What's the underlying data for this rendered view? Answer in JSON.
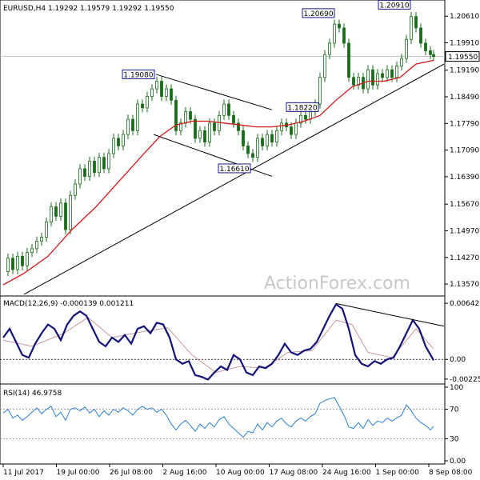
{
  "chart_data": [
    {
      "type": "line",
      "panel": "price",
      "title": "EURUSD,H4  1.19292 1.19579 1.19292 1.19550",
      "watermark": "ActionForex.com",
      "yticks": [
        "1.20610",
        "1.19910",
        "1.19190",
        "1.18490",
        "1.17790",
        "1.17090",
        "1.16390",
        "1.15670",
        "1.14970",
        "1.14270",
        "1.13570"
      ],
      "ylim": [
        1.1334,
        1.2095
      ],
      "current_price": "1.19550",
      "xticks": [
        "11 Jul 2017",
        "19 Jul 00:00",
        "26 Jul 08:00",
        "2 Aug 16:00",
        "10 Aug 00:00",
        "17 Aug 08:00",
        "24 Aug 16:00",
        "1 Sep 00:00",
        "8 Sep 08:00"
      ],
      "annotations": [
        {
          "text": "1.19080",
          "x": 195,
          "y": 1.1908
        },
        {
          "text": "1.16610",
          "x": 315,
          "y": 1.1661
        },
        {
          "text": "1.20690",
          "x": 420,
          "y": 1.2069
        },
        {
          "text": "1.18220",
          "x": 400,
          "y": 1.1822
        },
        {
          "text": "1.20910",
          "x": 515,
          "y": 1.2091
        }
      ],
      "close_series": [
        [
          4,
          1.139
        ],
        [
          10,
          1.1425
        ],
        [
          16,
          1.1395
        ],
        [
          22,
          1.143
        ],
        [
          28,
          1.1405
        ],
        [
          34,
          1.144
        ],
        [
          40,
          1.145
        ],
        [
          46,
          1.147
        ],
        [
          52,
          1.148
        ],
        [
          58,
          1.152
        ],
        [
          64,
          1.156
        ],
        [
          70,
          1.1535
        ],
        [
          76,
          1.157
        ],
        [
          82,
          1.15
        ],
        [
          88,
          1.159
        ],
        [
          94,
          1.162
        ],
        [
          100,
          1.166
        ],
        [
          106,
          1.164
        ],
        [
          112,
          1.168
        ],
        [
          118,
          1.165
        ],
        [
          124,
          1.169
        ],
        [
          130,
          1.166
        ],
        [
          136,
          1.17
        ],
        [
          142,
          1.174
        ],
        [
          148,
          1.172
        ],
        [
          154,
          1.175
        ],
        [
          160,
          1.179
        ],
        [
          166,
          1.176
        ],
        [
          172,
          1.183
        ],
        [
          178,
          1.182
        ],
        [
          184,
          1.185
        ],
        [
          190,
          1.187
        ],
        [
          196,
          1.189
        ],
        [
          202,
          1.185
        ],
        [
          208,
          1.187
        ],
        [
          214,
          1.184
        ],
        [
          220,
          1.176
        ],
        [
          226,
          1.178
        ],
        [
          232,
          1.181
        ],
        [
          238,
          1.179
        ],
        [
          244,
          1.174
        ],
        [
          250,
          1.176
        ],
        [
          256,
          1.173
        ],
        [
          262,
          1.178
        ],
        [
          268,
          1.176
        ],
        [
          274,
          1.18
        ],
        [
          280,
          1.183
        ],
        [
          286,
          1.18
        ],
        [
          292,
          1.178
        ],
        [
          298,
          1.176
        ],
        [
          304,
          1.172
        ],
        [
          310,
          1.17
        ],
        [
          316,
          1.169
        ],
        [
          322,
          1.174
        ],
        [
          328,
          1.172
        ],
        [
          334,
          1.175
        ],
        [
          340,
          1.173
        ],
        [
          346,
          1.176
        ],
        [
          352,
          1.178
        ],
        [
          358,
          1.177
        ],
        [
          364,
          1.175
        ],
        [
          370,
          1.178
        ],
        [
          376,
          1.18
        ],
        [
          382,
          1.179
        ],
        [
          388,
          1.181
        ],
        [
          394,
          1.183
        ],
        [
          400,
          1.19
        ],
        [
          406,
          1.196
        ],
        [
          412,
          1.199
        ],
        [
          418,
          1.204
        ],
        [
          424,
          1.203
        ],
        [
          430,
          1.199
        ],
        [
          436,
          1.19
        ],
        [
          442,
          1.188
        ],
        [
          448,
          1.19
        ],
        [
          454,
          1.187
        ],
        [
          460,
          1.192
        ],
        [
          466,
          1.188
        ],
        [
          472,
          1.191
        ],
        [
          478,
          1.19
        ],
        [
          484,
          1.192
        ],
        [
          490,
          1.19
        ],
        [
          496,
          1.193
        ],
        [
          502,
          1.195
        ],
        [
          508,
          1.2
        ],
        [
          514,
          1.206
        ],
        [
          520,
          1.203
        ],
        [
          526,
          1.199
        ],
        [
          532,
          1.197
        ],
        [
          538,
          1.196
        ],
        [
          542,
          1.1955
        ]
      ],
      "ma_series": [
        [
          4,
          1.1355
        ],
        [
          30,
          1.1385
        ],
        [
          60,
          1.143
        ],
        [
          90,
          1.15
        ],
        [
          120,
          1.156
        ],
        [
          150,
          1.163
        ],
        [
          180,
          1.17
        ],
        [
          200,
          1.1745
        ],
        [
          220,
          1.1775
        ],
        [
          240,
          1.1785
        ],
        [
          260,
          1.1785
        ],
        [
          280,
          1.178
        ],
        [
          300,
          1.1775
        ],
        [
          320,
          1.177
        ],
        [
          340,
          1.177
        ],
        [
          360,
          1.1775
        ],
        [
          380,
          1.1785
        ],
        [
          400,
          1.18
        ],
        [
          420,
          1.184
        ],
        [
          440,
          1.1875
        ],
        [
          460,
          1.189
        ],
        [
          480,
          1.189
        ],
        [
          500,
          1.19
        ],
        [
          520,
          1.1935
        ],
        [
          542,
          1.1945
        ]
      ],
      "trendlines": [
        {
          "from": [
            30,
            1.133
          ],
          "to": [
            555,
            1.1935
          ]
        },
        {
          "from": [
            195,
            1.1908
          ],
          "to": [
            340,
            1.1815
          ]
        },
        {
          "from": [
            192,
            1.175
          ],
          "to": [
            340,
            1.164
          ]
        }
      ]
    },
    {
      "type": "line",
      "panel": "macd",
      "title": "MACD(12,26,9) -0.000139 0.001211",
      "yticks": [
        "0.006425",
        "0.00",
        "-0.002251"
      ],
      "ylim": [
        -0.00245,
        0.0068
      ],
      "zero_line": 0,
      "macd_series": [
        [
          4,
          0.0025
        ],
        [
          12,
          0.0035
        ],
        [
          20,
          0.002
        ],
        [
          28,
          0.0005
        ],
        [
          36,
          0.0002
        ],
        [
          44,
          0.0018
        ],
        [
          52,
          0.003
        ],
        [
          60,
          0.004
        ],
        [
          68,
          0.0035
        ],
        [
          76,
          0.0022
        ],
        [
          84,
          0.004
        ],
        [
          92,
          0.005
        ],
        [
          100,
          0.0055
        ],
        [
          108,
          0.005
        ],
        [
          116,
          0.0035
        ],
        [
          124,
          0.002
        ],
        [
          132,
          0.0015
        ],
        [
          140,
          0.0025
        ],
        [
          148,
          0.002
        ],
        [
          156,
          0.0028
        ],
        [
          164,
          0.0018
        ],
        [
          172,
          0.0035
        ],
        [
          180,
          0.0038
        ],
        [
          188,
          0.003
        ],
        [
          196,
          0.0042
        ],
        [
          204,
          0.004
        ],
        [
          212,
          0.0025
        ],
        [
          220,
          0.0
        ],
        [
          228,
          -0.0005
        ],
        [
          236,
          -0.0002
        ],
        [
          244,
          -0.0018
        ],
        [
          252,
          -0.002
        ],
        [
          260,
          -0.0023
        ],
        [
          268,
          -0.0015
        ],
        [
          276,
          -0.0008
        ],
        [
          284,
          -0.0012
        ],
        [
          292,
          0.0005
        ],
        [
          300,
          0.0
        ],
        [
          308,
          -0.0015
        ],
        [
          316,
          -0.0018
        ],
        [
          324,
          -0.0008
        ],
        [
          332,
          -0.001
        ],
        [
          340,
          -0.0005
        ],
        [
          348,
          0.0005
        ],
        [
          356,
          0.0018
        ],
        [
          364,
          0.0008
        ],
        [
          372,
          0.0005
        ],
        [
          380,
          0.001
        ],
        [
          388,
          0.0012
        ],
        [
          396,
          0.002
        ],
        [
          404,
          0.0035
        ],
        [
          412,
          0.005
        ],
        [
          420,
          0.0063
        ],
        [
          428,
          0.0058
        ],
        [
          436,
          0.0035
        ],
        [
          444,
          0.0005
        ],
        [
          452,
          -0.0005
        ],
        [
          460,
          -0.0008
        ],
        [
          468,
          -0.0002
        ],
        [
          476,
          -0.0005
        ],
        [
          484,
          0.0
        ],
        [
          492,
          0.0002
        ],
        [
          500,
          0.0015
        ],
        [
          508,
          0.003
        ],
        [
          516,
          0.0045
        ],
        [
          524,
          0.0035
        ],
        [
          532,
          0.0015
        ],
        [
          542,
          -0.0001
        ]
      ],
      "signal_series": [
        [
          4,
          0.0022
        ],
        [
          40,
          0.0015
        ],
        [
          80,
          0.003
        ],
        [
          110,
          0.0048
        ],
        [
          140,
          0.0025
        ],
        [
          180,
          0.0032
        ],
        [
          210,
          0.0036
        ],
        [
          240,
          0.0005
        ],
        [
          270,
          -0.0015
        ],
        [
          300,
          -0.0008
        ],
        [
          330,
          -0.001
        ],
        [
          360,
          0.0008
        ],
        [
          390,
          0.001
        ],
        [
          420,
          0.0045
        ],
        [
          440,
          0.004
        ],
        [
          460,
          0.0008
        ],
        [
          490,
          0.0002
        ],
        [
          520,
          0.0035
        ],
        [
          542,
          0.0012
        ]
      ],
      "trendline": {
        "from": [
          420,
          0.0064
        ],
        "to": [
          555,
          0.0038
        ]
      }
    },
    {
      "type": "line",
      "panel": "rsi",
      "title": "RSI(14) 46.9758",
      "yticks": [
        "100",
        "70",
        "30",
        "0.00"
      ],
      "ylim": [
        0,
        100
      ],
      "levels": [
        70,
        30
      ],
      "rsi_series": [
        [
          4,
          65
        ],
        [
          10,
          70
        ],
        [
          16,
          58
        ],
        [
          22,
          62
        ],
        [
          28,
          55
        ],
        [
          34,
          60
        ],
        [
          40,
          66
        ],
        [
          46,
          72
        ],
        [
          52,
          64
        ],
        [
          58,
          70
        ],
        [
          64,
          74
        ],
        [
          70,
          60
        ],
        [
          76,
          66
        ],
        [
          82,
          55
        ],
        [
          88,
          70
        ],
        [
          94,
          72
        ],
        [
          100,
          68
        ],
        [
          106,
          73
        ],
        [
          112,
          65
        ],
        [
          118,
          70
        ],
        [
          124,
          60
        ],
        [
          130,
          68
        ],
        [
          136,
          62
        ],
        [
          142,
          70
        ],
        [
          148,
          66
        ],
        [
          154,
          72
        ],
        [
          160,
          68
        ],
        [
          166,
          62
        ],
        [
          172,
          70
        ],
        [
          178,
          74
        ],
        [
          184,
          70
        ],
        [
          190,
          72
        ],
        [
          196,
          66
        ],
        [
          202,
          70
        ],
        [
          208,
          62
        ],
        [
          214,
          50
        ],
        [
          220,
          42
        ],
        [
          226,
          50
        ],
        [
          232,
          55
        ],
        [
          238,
          48
        ],
        [
          244,
          40
        ],
        [
          250,
          50
        ],
        [
          256,
          44
        ],
        [
          262,
          52
        ],
        [
          268,
          46
        ],
        [
          274,
          56
        ],
        [
          280,
          60
        ],
        [
          286,
          50
        ],
        [
          292,
          44
        ],
        [
          298,
          38
        ],
        [
          304,
          32
        ],
        [
          310,
          40
        ],
        [
          316,
          38
        ],
        [
          322,
          50
        ],
        [
          328,
          42
        ],
        [
          334,
          52
        ],
        [
          340,
          46
        ],
        [
          346,
          54
        ],
        [
          352,
          58
        ],
        [
          358,
          50
        ],
        [
          364,
          46
        ],
        [
          370,
          54
        ],
        [
          376,
          58
        ],
        [
          382,
          54
        ],
        [
          388,
          60
        ],
        [
          394,
          64
        ],
        [
          400,
          78
        ],
        [
          406,
          82
        ],
        [
          412,
          84
        ],
        [
          418,
          86
        ],
        [
          424,
          74
        ],
        [
          430,
          62
        ],
        [
          436,
          46
        ],
        [
          442,
          44
        ],
        [
          448,
          52
        ],
        [
          454,
          44
        ],
        [
          460,
          56
        ],
        [
          466,
          48
        ],
        [
          472,
          54
        ],
        [
          478,
          52
        ],
        [
          484,
          58
        ],
        [
          490,
          54
        ],
        [
          496,
          58
        ],
        [
          502,
          62
        ],
        [
          508,
          76
        ],
        [
          514,
          68
        ],
        [
          520,
          58
        ],
        [
          526,
          52
        ],
        [
          532,
          48
        ],
        [
          538,
          42
        ],
        [
          542,
          47
        ]
      ]
    }
  ]
}
